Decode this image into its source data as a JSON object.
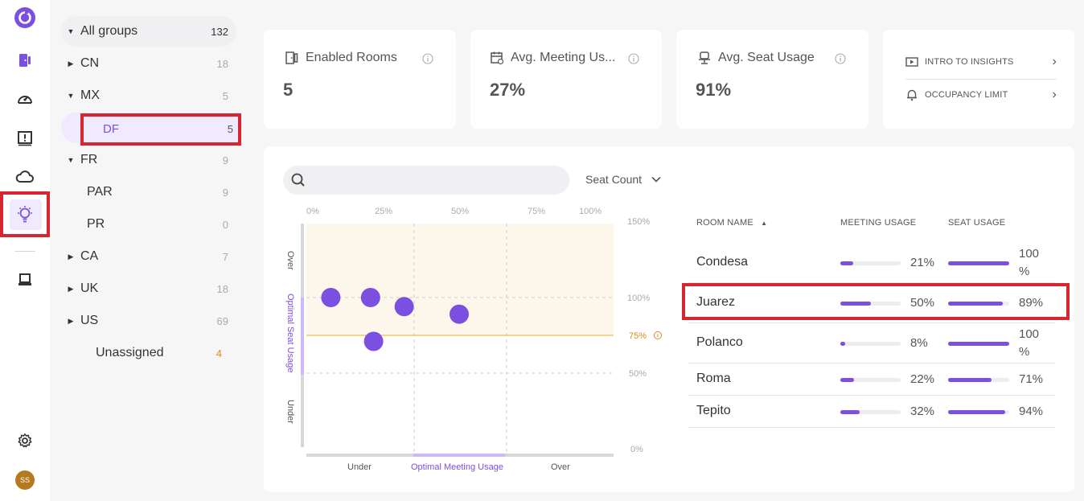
{
  "rail": {
    "icons": [
      "logo-icon",
      "room-icon",
      "dashboard-icon",
      "alert-icon",
      "cloud-icon",
      "insights-icon",
      "device-icon",
      "settings-icon"
    ],
    "avatar_initials": "SS",
    "accent": "#7b4fe0"
  },
  "tree": {
    "all": {
      "label": "All groups",
      "count": "132"
    },
    "items": [
      {
        "label": "CN",
        "count": "18"
      },
      {
        "label": "MX",
        "count": "5"
      },
      {
        "label": "DF",
        "count": "5"
      },
      {
        "label": "FR",
        "count": "9"
      },
      {
        "label": "PAR",
        "count": "9"
      },
      {
        "label": "PR",
        "count": "0"
      },
      {
        "label": "CA",
        "count": "7"
      },
      {
        "label": "UK",
        "count": "18"
      },
      {
        "label": "US",
        "count": "69"
      },
      {
        "label": "Unassigned",
        "count": "4"
      }
    ]
  },
  "stats": [
    {
      "title": "Enabled Rooms",
      "value": "5"
    },
    {
      "title": "Avg. Meeting Us...",
      "value": "27%"
    },
    {
      "title": "Avg. Seat Usage",
      "value": "91%"
    }
  ],
  "links": [
    {
      "label": "INTRO TO INSIGHTS"
    },
    {
      "label": "OCCUPANCY LIMIT"
    }
  ],
  "search": {
    "placeholder": "",
    "value": ""
  },
  "dropdown": {
    "selected": "Seat Count"
  },
  "chart": {
    "top_ticks": [
      "0%",
      "25%",
      "50%",
      "75%",
      "100%"
    ],
    "right_ticks": [
      "150%",
      "100%",
      "75%",
      "50%",
      "0%"
    ],
    "y_labels": [
      "Over",
      "Optimal Seat Usage",
      "Under"
    ],
    "x_labels": [
      "Under",
      "Optimal Meeting Usage",
      "Over"
    ],
    "occupancy_limit_label": "75%"
  },
  "chart_data": {
    "type": "scatter",
    "x": [
      8,
      21,
      22,
      32,
      50
    ],
    "y": [
      100,
      100,
      71,
      94,
      89
    ],
    "xlabel": "Optimal Meeting Usage",
    "ylabel": "Optimal Seat Usage",
    "xlim": [
      0,
      100
    ],
    "ylim": [
      0,
      150
    ],
    "reference_line": 75,
    "point_color": "#7b4fe0"
  },
  "table": {
    "headers": {
      "room": "ROOM NAME",
      "meeting": "MEETING USAGE",
      "seat": "SEAT USAGE"
    },
    "rows": [
      {
        "room": "Condesa",
        "meeting": "21%",
        "seat": "100 %",
        "meeting_val": 21,
        "seat_val": 100
      },
      {
        "room": "Juarez",
        "meeting": "50%",
        "seat": "89%",
        "meeting_val": 50,
        "seat_val": 89
      },
      {
        "room": "Polanco",
        "meeting": "8%",
        "seat": "100 %",
        "meeting_val": 8,
        "seat_val": 100
      },
      {
        "room": "Roma",
        "meeting": "22%",
        "seat": "71%",
        "meeting_val": 22,
        "seat_val": 71
      },
      {
        "room": "Tepito",
        "meeting": "32%",
        "seat": "94%",
        "meeting_val": 32,
        "seat_val": 94
      }
    ]
  }
}
